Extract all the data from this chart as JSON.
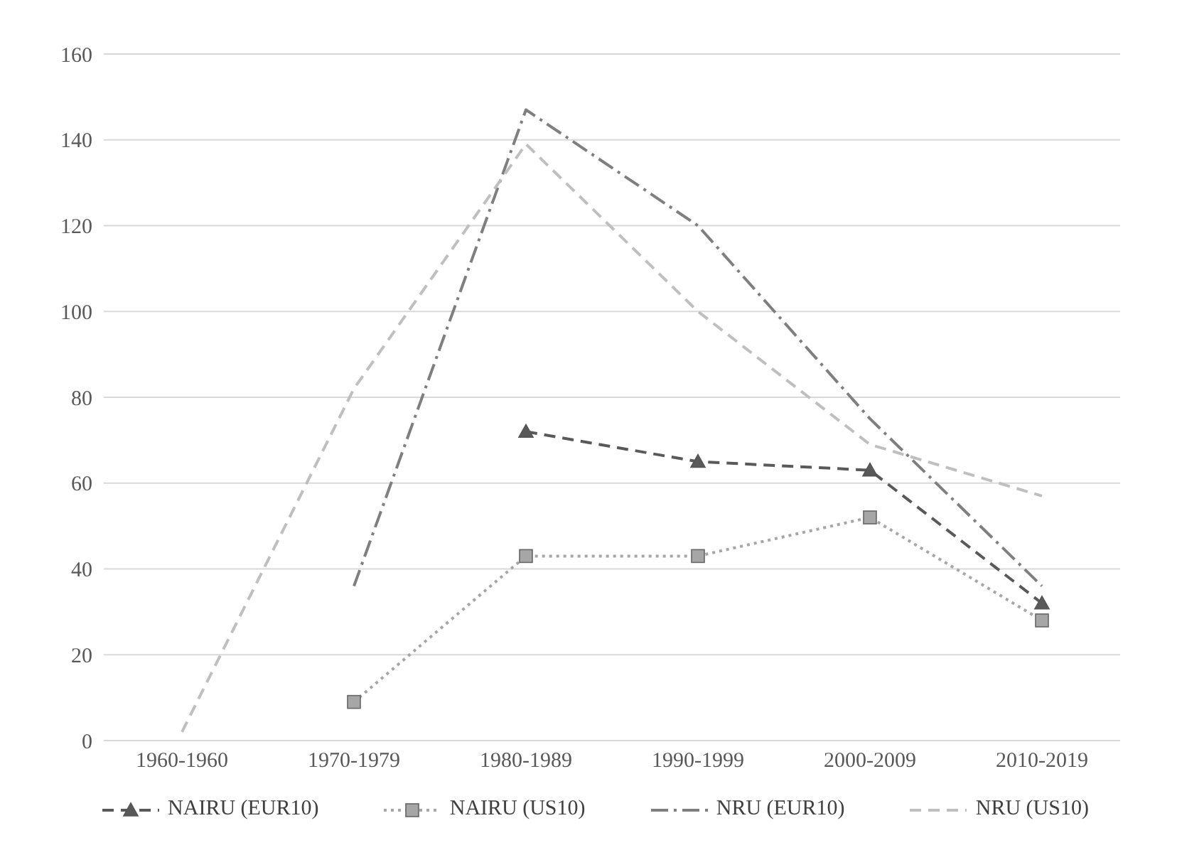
{
  "chart_data": {
    "type": "line",
    "categories": [
      "1960-1960",
      "1970-1979",
      "1980-1989",
      "1990-1999",
      "2000-2009",
      "2010-2019"
    ],
    "series": [
      {
        "name": "NAIRU (EUR10)",
        "color": "#595959",
        "line_style": "dashed",
        "marker": "triangle",
        "values": [
          null,
          null,
          72,
          65,
          63,
          32
        ]
      },
      {
        "name": "NAIRU (US10)",
        "color": "#a6a6a6",
        "line_style": "dotted",
        "marker": "square",
        "values": [
          null,
          9,
          43,
          43,
          52,
          28
        ]
      },
      {
        "name": "NRU (EUR10)",
        "color": "#7f7f7f",
        "line_style": "dashdot",
        "marker": "none",
        "values": [
          null,
          36,
          147,
          120,
          75,
          36
        ]
      },
      {
        "name": "NRU (US10)",
        "color": "#bfbfbf",
        "line_style": "dashed",
        "marker": "none",
        "values": [
          2,
          82,
          139,
          100,
          69,
          57
        ]
      }
    ],
    "ylim": [
      0,
      160
    ],
    "yticks": [
      0,
      20,
      40,
      60,
      80,
      100,
      120,
      140,
      160
    ],
    "grid": "y",
    "legend": "bottom"
  }
}
